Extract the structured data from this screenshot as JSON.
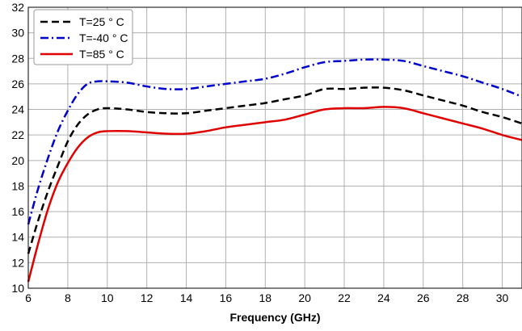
{
  "chart_data": {
    "type": "line",
    "title": "",
    "xlabel": "Frequency (GHz)",
    "ylabel": "",
    "xlim": [
      6,
      31
    ],
    "ylim": [
      10,
      32
    ],
    "xticks": [
      6,
      8,
      10,
      12,
      14,
      16,
      18,
      20,
      22,
      24,
      26,
      28,
      30
    ],
    "yticks": [
      10,
      12,
      14,
      16,
      18,
      20,
      22,
      24,
      26,
      28,
      30,
      32
    ],
    "grid": true,
    "legend_position": "top-left",
    "series": [
      {
        "name": "T=25 ° C",
        "color": "#000000",
        "dash": "dashed",
        "x": [
          6,
          6.5,
          7,
          7.5,
          8,
          8.5,
          9,
          9.5,
          10,
          11,
          12,
          13,
          14,
          15,
          16,
          17,
          18,
          19,
          20,
          21,
          22,
          23,
          24,
          25,
          26,
          27,
          28,
          29,
          30,
          31
        ],
        "y": [
          12.7,
          15.3,
          17.6,
          19.6,
          21.5,
          22.8,
          23.6,
          24.0,
          24.1,
          24.0,
          23.8,
          23.7,
          23.7,
          23.9,
          24.1,
          24.3,
          24.5,
          24.8,
          25.1,
          25.6,
          25.6,
          25.7,
          25.7,
          25.5,
          25.1,
          24.7,
          24.3,
          23.8,
          23.4,
          22.9
        ]
      },
      {
        "name": "T=-40 ° C",
        "color": "#0000cc",
        "dash": "dashdot",
        "x": [
          6,
          6.5,
          7,
          7.5,
          8,
          8.5,
          9,
          9.5,
          10,
          11,
          12,
          13,
          14,
          15,
          16,
          17,
          18,
          19,
          20,
          21,
          22,
          23,
          24,
          25,
          26,
          27,
          28,
          29,
          30,
          31
        ],
        "y": [
          15.0,
          17.8,
          20.2,
          22.3,
          23.9,
          25.2,
          26.0,
          26.2,
          26.2,
          26.1,
          25.8,
          25.6,
          25.6,
          25.8,
          26.0,
          26.2,
          26.4,
          26.8,
          27.3,
          27.7,
          27.8,
          27.9,
          27.9,
          27.8,
          27.4,
          27.0,
          26.6,
          26.1,
          25.6,
          25.0
        ]
      },
      {
        "name": "T=85 ° C",
        "color": "#e00000",
        "dash": "solid",
        "x": [
          6,
          6.5,
          7,
          7.5,
          8,
          8.5,
          9,
          9.5,
          10,
          11,
          12,
          13,
          14,
          15,
          16,
          17,
          18,
          19,
          20,
          21,
          22,
          23,
          24,
          25,
          26,
          27,
          28,
          29,
          30,
          31
        ],
        "y": [
          10.5,
          13.5,
          16.2,
          18.3,
          19.8,
          21.0,
          21.8,
          22.2,
          22.3,
          22.3,
          22.2,
          22.1,
          22.1,
          22.3,
          22.6,
          22.8,
          23.0,
          23.2,
          23.6,
          24.0,
          24.1,
          24.1,
          24.2,
          24.1,
          23.7,
          23.3,
          22.9,
          22.5,
          22.0,
          21.6
        ]
      }
    ]
  }
}
